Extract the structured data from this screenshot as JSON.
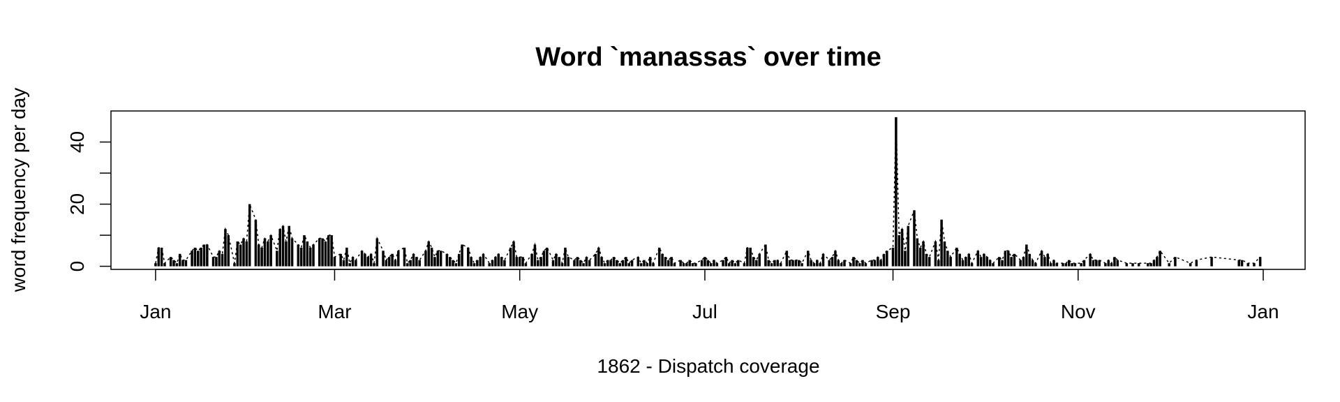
{
  "chart_data": {
    "type": "histogram-line",
    "title": "Word `manassas` over time",
    "xlabel": "1862 - Dispatch coverage",
    "ylabel": "word frequency per day",
    "color": "#000000",
    "xlim": [
      -14.7,
      378.8
    ],
    "xticks": [
      {
        "value": 0,
        "label": "Jan"
      },
      {
        "value": 59,
        "label": "Mar"
      },
      {
        "value": 120,
        "label": "May"
      },
      {
        "value": 181,
        "label": "Jul"
      },
      {
        "value": 243,
        "label": "Sep"
      },
      {
        "value": 304,
        "label": "Nov"
      },
      {
        "value": 365,
        "label": "Jan"
      }
    ],
    "ylim": [
      -1,
      50
    ],
    "yticks": [
      0,
      10,
      20,
      30,
      40
    ],
    "x": [
      0,
      1,
      2,
      3,
      5,
      6,
      7,
      8,
      9,
      10,
      12,
      13,
      14,
      15,
      16,
      17,
      19,
      20,
      21,
      22,
      23,
      24,
      26,
      27,
      28,
      29,
      30,
      31,
      33,
      34,
      35,
      36,
      37,
      38,
      40,
      41,
      42,
      43,
      44,
      45,
      47,
      48,
      49,
      50,
      51,
      52,
      54,
      55,
      56,
      57,
      58,
      59,
      61,
      62,
      63,
      64,
      65,
      66,
      68,
      69,
      70,
      71,
      72,
      73,
      75,
      76,
      77,
      78,
      79,
      80,
      82,
      83,
      84,
      85,
      86,
      87,
      89,
      90,
      91,
      92,
      93,
      94,
      96,
      97,
      98,
      99,
      100,
      101,
      103,
      104,
      105,
      106,
      107,
      108,
      110,
      111,
      112,
      113,
      114,
      115,
      117,
      118,
      119,
      120,
      121,
      122,
      124,
      125,
      126,
      127,
      128,
      129,
      131,
      132,
      133,
      134,
      135,
      136,
      138,
      139,
      140,
      141,
      142,
      143,
      145,
      146,
      147,
      148,
      149,
      150,
      151,
      152,
      153,
      154,
      155,
      156,
      157,
      159,
      160,
      161,
      162,
      163,
      164,
      166,
      167,
      168,
      169,
      170,
      171,
      173,
      174,
      175,
      176,
      177,
      178,
      180,
      181,
      182,
      183,
      184,
      185,
      187,
      188,
      189,
      190,
      191,
      192,
      194,
      195,
      196,
      197,
      198,
      199,
      201,
      202,
      203,
      204,
      205,
      206,
      208,
      209,
      210,
      211,
      212,
      213,
      215,
      216,
      217,
      218,
      219,
      220,
      222,
      223,
      224,
      225,
      226,
      227,
      229,
      230,
      231,
      232,
      233,
      234,
      236,
      237,
      238,
      239,
      240,
      241,
      243,
      244,
      245,
      246,
      247,
      248,
      250,
      251,
      252,
      253,
      254,
      255,
      257,
      258,
      259,
      260,
      261,
      262,
      264,
      265,
      266,
      267,
      268,
      269,
      271,
      272,
      273,
      274,
      275,
      276,
      278,
      279,
      280,
      281,
      282,
      283,
      285,
      286,
      287,
      288,
      289,
      290,
      292,
      293,
      294,
      295,
      296,
      297,
      299,
      300,
      301,
      302,
      303,
      305,
      306,
      308,
      309,
      310,
      311,
      313,
      314,
      315,
      316,
      317,
      320,
      322,
      324,
      327,
      328,
      329,
      330,
      331,
      334,
      336,
      341,
      343,
      348,
      357,
      358,
      360,
      362,
      364
    ],
    "values": [
      1,
      6,
      6,
      1,
      3,
      2,
      1,
      4,
      2,
      2,
      5,
      6,
      5,
      6,
      7,
      7,
      3,
      3,
      5,
      4,
      12,
      10,
      1,
      8,
      7,
      9,
      8,
      20,
      15,
      7,
      6,
      9,
      8,
      10,
      5,
      12,
      13,
      8,
      13,
      9,
      7,
      6,
      10,
      8,
      6,
      7,
      9,
      9,
      8,
      10,
      10,
      3,
      4,
      2,
      6,
      1,
      3,
      2,
      5,
      4,
      3,
      4,
      1,
      9,
      5,
      2,
      3,
      4,
      2,
      5,
      6,
      1,
      2,
      4,
      3,
      2,
      5,
      8,
      6,
      3,
      5,
      5,
      4,
      3,
      2,
      1,
      4,
      7,
      6,
      3,
      1,
      2,
      3,
      4,
      1,
      2,
      3,
      4,
      3,
      2,
      6,
      8,
      3,
      3,
      3,
      1,
      4,
      7,
      2,
      3,
      5,
      6,
      2,
      4,
      3,
      1,
      6,
      3,
      2,
      3,
      2,
      1,
      3,
      2,
      4,
      6,
      3,
      1,
      2,
      2,
      3,
      2,
      1,
      2,
      3,
      1,
      2,
      3,
      1,
      2,
      1,
      3,
      1,
      6,
      4,
      3,
      2,
      3,
      1,
      2,
      1,
      1,
      2,
      1,
      1,
      2,
      3,
      2,
      1,
      2,
      1,
      2,
      3,
      1,
      2,
      1,
      2,
      1,
      6,
      6,
      3,
      2,
      4,
      7,
      2,
      1,
      2,
      2,
      1,
      5,
      2,
      2,
      2,
      2,
      1,
      5,
      2,
      1,
      2,
      1,
      4,
      2,
      3,
      5,
      2,
      1,
      2,
      1,
      3,
      2,
      1,
      2,
      1,
      2,
      2,
      3,
      2,
      4,
      5,
      6,
      48,
      10,
      12,
      5,
      13,
      18,
      9,
      6,
      8,
      4,
      3,
      8,
      2,
      15,
      8,
      5,
      3,
      6,
      4,
      2,
      3,
      4,
      1,
      5,
      3,
      4,
      3,
      2,
      1,
      3,
      2,
      5,
      5,
      3,
      4,
      2,
      3,
      7,
      4,
      2,
      1,
      5,
      3,
      4,
      1,
      2,
      1,
      1,
      1,
      2,
      1,
      1,
      1,
      2,
      4,
      2,
      2,
      2,
      1,
      2,
      1,
      3,
      2,
      1,
      1,
      1,
      1,
      1,
      2,
      3,
      5,
      1,
      3,
      1,
      2,
      3,
      2,
      2,
      1,
      1,
      3
    ]
  }
}
